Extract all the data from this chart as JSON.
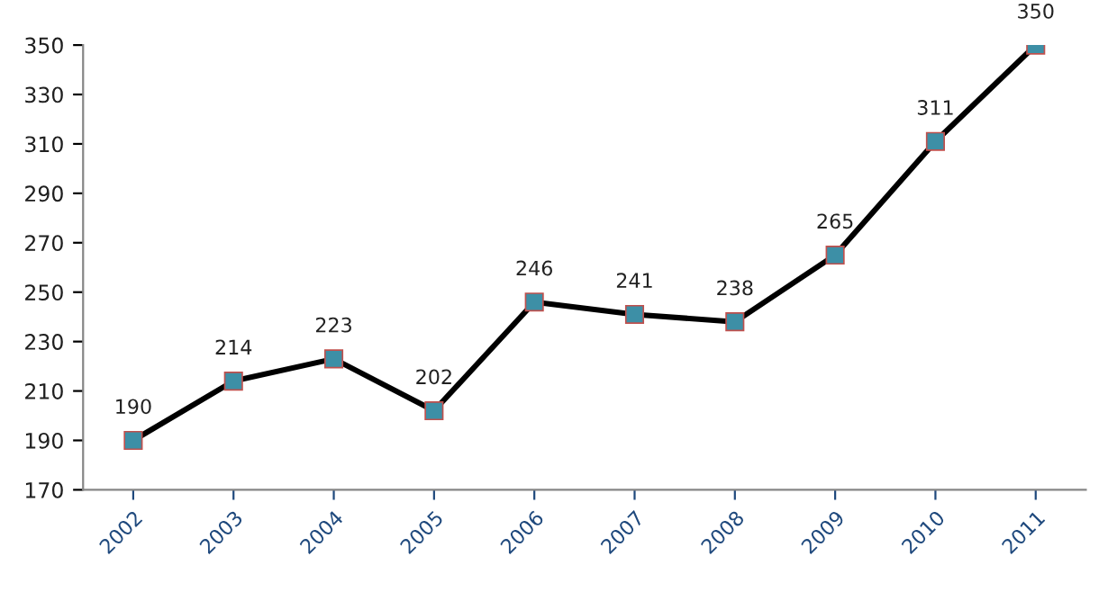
{
  "chart_data": {
    "type": "line",
    "categories": [
      "2002",
      "2003",
      "2004",
      "2005",
      "2006",
      "2007",
      "2008",
      "2009",
      "2010",
      "2011"
    ],
    "series": [
      {
        "color": "#000000",
        "values": [
          190,
          214,
          223,
          202,
          246,
          241,
          238,
          265,
          311,
          350
        ]
      }
    ],
    "marker": "square",
    "line_style": "solid",
    "data_labels": true,
    "ylim": [
      170,
      350
    ],
    "yticks": [
      170,
      190,
      210,
      230,
      250,
      270,
      290,
      310,
      330,
      350
    ],
    "grid": false,
    "legend": false
  }
}
